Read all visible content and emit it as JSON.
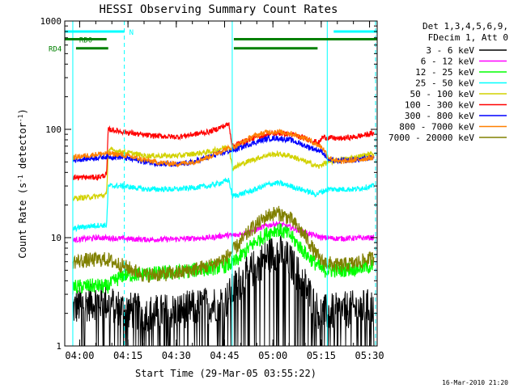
{
  "chart_data": {
    "type": "line",
    "title": "HESSI Observing Summary Count Rates",
    "xlabel": "Start Time (29-Mar-05 03:55:22)",
    "ylabel_main": "Count Rate (s",
    "ylabel_sup1": "-1",
    "ylabel_mid": " detector",
    "ylabel_sup2": "-1",
    "ylabel_end": ")",
    "footer_date": "16-Mar-2010 21:20",
    "x_range_minutes": [
      0,
      97
    ],
    "y_range": [
      1,
      1000
    ],
    "y_scale": "log",
    "x_ticks": [
      {
        "label": "04:00",
        "t": 4.63
      },
      {
        "label": "04:15",
        "t": 19.63
      },
      {
        "label": "04:30",
        "t": 34.63
      },
      {
        "label": "04:45",
        "t": 49.63
      },
      {
        "label": "05:00",
        "t": 64.63
      },
      {
        "label": "05:15",
        "t": 79.63
      },
      {
        "label": "05:30",
        "t": 94.63
      }
    ],
    "y_ticks": [
      {
        "label": "1",
        "v": 1
      },
      {
        "label": "10",
        "v": 10
      },
      {
        "label": "100",
        "v": 100
      },
      {
        "label": "1000",
        "v": 1000
      }
    ],
    "legend": {
      "header1": "Det 1,3,4,5,6,9,",
      "header2": "FDecim 1, Att 0",
      "entries": [
        {
          "label": "3 - 6 keV",
          "color": "#000000"
        },
        {
          "label": "6 - 12 keV",
          "color": "#ff00ff"
        },
        {
          "label": "12 - 25 keV",
          "color": "#00ff00"
        },
        {
          "label": "25 - 50 keV",
          "color": "#00ffff"
        },
        {
          "label": "50 - 100 keV",
          "color": "#d2d200"
        },
        {
          "label": "100 - 300 keV",
          "color": "#ff0000"
        },
        {
          "label": "300 - 800 keV",
          "color": "#0000ff"
        },
        {
          "label": "800 - 7000 keV",
          "color": "#ff8000"
        },
        {
          "label": "7000 - 20000 keV",
          "color": "#808000"
        }
      ]
    },
    "flags": [
      {
        "label": "N",
        "color": "#00ffff",
        "segments": [
          [
            0,
            18.5
          ],
          [
            83.5,
            97
          ]
        ],
        "value": 800
      },
      {
        "label": "RD0",
        "color": "#008000",
        "segments": [
          [
            0,
            13
          ],
          [
            52.5,
            97
          ]
        ],
        "value": 680
      },
      {
        "label": "RD4",
        "color": "#008000",
        "segments": [
          [
            3.5,
            13.5
          ],
          [
            52.5,
            78.5
          ]
        ],
        "value": 560
      }
    ],
    "saa_lines": [
      {
        "t": 2.5,
        "style": "solid"
      },
      {
        "t": 18.5,
        "style": "dashed"
      },
      {
        "t": 52.0,
        "style": "solid"
      },
      {
        "t": 81.5,
        "style": "solid"
      },
      {
        "t": 96.5,
        "style": "dashed"
      }
    ],
    "series": [
      {
        "name": "3 - 6 keV",
        "color": "#000000",
        "points": [
          [
            2.5,
            2.2
          ],
          [
            5,
            2.4
          ],
          [
            10,
            2.6
          ],
          [
            13,
            2.5
          ],
          [
            18,
            2.2
          ],
          [
            25,
            2.0
          ],
          [
            35,
            2.1
          ],
          [
            45,
            2.4
          ],
          [
            50,
            2.6
          ],
          [
            53,
            3.5
          ],
          [
            58,
            5.0
          ],
          [
            63,
            6.8
          ],
          [
            66,
            7.5
          ],
          [
            70,
            6.0
          ],
          [
            75,
            3.5
          ],
          [
            78,
            2.2
          ],
          [
            80,
            2.0
          ],
          [
            85,
            2.1
          ],
          [
            90,
            2.2
          ],
          [
            96,
            2.3
          ]
        ]
      },
      {
        "name": "6 - 12 keV",
        "color": "#ff00ff",
        "points": [
          [
            2.5,
            9.5
          ],
          [
            10,
            10.0
          ],
          [
            18,
            9.8
          ],
          [
            25,
            9.6
          ],
          [
            35,
            9.7
          ],
          [
            45,
            10.0
          ],
          [
            50,
            10.5
          ],
          [
            53,
            10.5
          ],
          [
            58,
            11.5
          ],
          [
            63,
            13.0
          ],
          [
            66,
            13.5
          ],
          [
            70,
            12.5
          ],
          [
            75,
            11.0
          ],
          [
            80,
            10.0
          ],
          [
            85,
            9.8
          ],
          [
            90,
            9.9
          ],
          [
            96,
            10.0
          ]
        ]
      },
      {
        "name": "12 - 25 keV",
        "color": "#00ff00",
        "points": [
          [
            2.5,
            3.5
          ],
          [
            10,
            3.6
          ],
          [
            13,
            3.5
          ],
          [
            18,
            4.5
          ],
          [
            25,
            4.6
          ],
          [
            35,
            4.8
          ],
          [
            45,
            5.2
          ],
          [
            50,
            5.5
          ],
          [
            53,
            6.0
          ],
          [
            58,
            8.5
          ],
          [
            63,
            11.0
          ],
          [
            66,
            12.0
          ],
          [
            70,
            10.5
          ],
          [
            75,
            7.0
          ],
          [
            80,
            5.0
          ],
          [
            85,
            5.0
          ],
          [
            90,
            5.2
          ],
          [
            96,
            5.5
          ]
        ]
      },
      {
        "name": "25 - 50 keV",
        "color": "#00ffff",
        "points": [
          [
            2.5,
            12.0
          ],
          [
            5,
            12.5
          ],
          [
            10,
            13.0
          ],
          [
            13,
            13.0
          ],
          [
            13.5,
            30
          ],
          [
            18,
            30
          ],
          [
            25,
            28
          ],
          [
            35,
            28
          ],
          [
            45,
            30
          ],
          [
            51,
            34
          ],
          [
            52,
            24
          ],
          [
            58,
            27
          ],
          [
            63,
            31
          ],
          [
            66,
            32
          ],
          [
            70,
            30
          ],
          [
            75,
            27
          ],
          [
            78,
            25
          ],
          [
            79,
            26
          ],
          [
            82,
            28
          ],
          [
            85,
            28
          ],
          [
            90,
            28
          ],
          [
            96,
            30
          ]
        ]
      },
      {
        "name": "50 - 100 keV",
        "color": "#d2d200",
        "points": [
          [
            2.5,
            23
          ],
          [
            10,
            24
          ],
          [
            13,
            25
          ],
          [
            13.5,
            65
          ],
          [
            18,
            62
          ],
          [
            25,
            57
          ],
          [
            35,
            57
          ],
          [
            45,
            62
          ],
          [
            51,
            70
          ],
          [
            52,
            44
          ],
          [
            58,
            52
          ],
          [
            63,
            58
          ],
          [
            66,
            59
          ],
          [
            70,
            57
          ],
          [
            75,
            50
          ],
          [
            79,
            45
          ],
          [
            80,
            48
          ],
          [
            85,
            52
          ],
          [
            90,
            55
          ],
          [
            96,
            60
          ]
        ]
      },
      {
        "name": "100 - 300 keV",
        "color": "#ff0000",
        "points": [
          [
            2.5,
            36
          ],
          [
            10,
            36
          ],
          [
            13,
            38
          ],
          [
            13.5,
            100
          ],
          [
            18,
            95
          ],
          [
            25,
            88
          ],
          [
            35,
            85
          ],
          [
            45,
            95
          ],
          [
            51,
            112
          ],
          [
            52,
            70
          ],
          [
            58,
            82
          ],
          [
            63,
            90
          ],
          [
            66,
            92
          ],
          [
            70,
            90
          ],
          [
            75,
            82
          ],
          [
            79,
            75
          ],
          [
            80,
            85
          ],
          [
            85,
            82
          ],
          [
            90,
            85
          ],
          [
            96,
            92
          ]
        ]
      },
      {
        "name": "300 - 800 keV",
        "color": "#0000ff",
        "points": [
          [
            2.5,
            52
          ],
          [
            8,
            54
          ],
          [
            13,
            56
          ],
          [
            18,
            55
          ],
          [
            25,
            50
          ],
          [
            30,
            48
          ],
          [
            35,
            47
          ],
          [
            40,
            50
          ],
          [
            45,
            56
          ],
          [
            50,
            62
          ],
          [
            53,
            65
          ],
          [
            58,
            74
          ],
          [
            63,
            82
          ],
          [
            66,
            83
          ],
          [
            70,
            80
          ],
          [
            75,
            70
          ],
          [
            80,
            62
          ],
          [
            82,
            52
          ],
          [
            85,
            51
          ],
          [
            90,
            52
          ],
          [
            96,
            55
          ]
        ]
      },
      {
        "name": "800 - 7000 keV",
        "color": "#ff8000",
        "points": [
          [
            2.5,
            55
          ],
          [
            8,
            58
          ],
          [
            13,
            60
          ],
          [
            18,
            58
          ],
          [
            25,
            52
          ],
          [
            30,
            49
          ],
          [
            35,
            48
          ],
          [
            40,
            50
          ],
          [
            45,
            56
          ],
          [
            50,
            66
          ],
          [
            53,
            70
          ],
          [
            58,
            85
          ],
          [
            63,
            95
          ],
          [
            66,
            95
          ],
          [
            70,
            92
          ],
          [
            75,
            82
          ],
          [
            80,
            68
          ],
          [
            82,
            55
          ],
          [
            85,
            50
          ],
          [
            90,
            52
          ],
          [
            96,
            55
          ]
        ]
      },
      {
        "name": "7000 - 20000 keV",
        "color": "#808000",
        "points": [
          [
            2.5,
            6.0
          ],
          [
            8,
            6.2
          ],
          [
            13,
            6.3
          ],
          [
            18,
            5.5
          ],
          [
            25,
            4.5
          ],
          [
            35,
            4.7
          ],
          [
            45,
            5.5
          ],
          [
            50,
            6.5
          ],
          [
            53,
            8.0
          ],
          [
            58,
            12.0
          ],
          [
            63,
            16.0
          ],
          [
            66,
            17.0
          ],
          [
            70,
            15.0
          ],
          [
            75,
            10.0
          ],
          [
            78,
            7.0
          ],
          [
            80,
            6.0
          ],
          [
            85,
            5.5
          ],
          [
            90,
            5.8
          ],
          [
            96,
            6.5
          ]
        ]
      }
    ]
  }
}
